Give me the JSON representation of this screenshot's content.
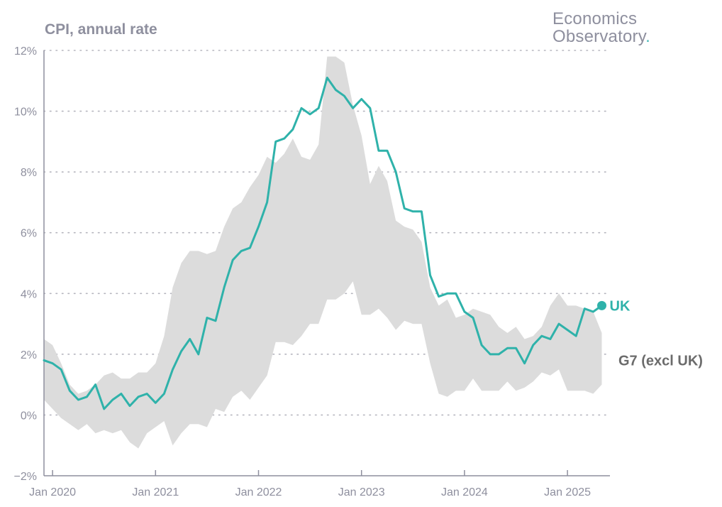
{
  "chart_data": {
    "type": "line",
    "title": "CPI, annual rate",
    "brand": {
      "line1": "Economics",
      "line2": "Observatory",
      "dot": "."
    },
    "x_start": "2019-12",
    "x_end": "2025-05",
    "x_tick_labels": [
      "Jan 2020",
      "Jan 2021",
      "Jan 2022",
      "Jan 2023",
      "Jan 2024",
      "Jan 2025"
    ],
    "x_tick_positions": [
      1,
      13,
      25,
      37,
      49,
      61
    ],
    "ylim": [
      -2,
      12
    ],
    "y_ticks": [
      -2,
      0,
      2,
      4,
      6,
      8,
      10,
      12
    ],
    "y_tick_labels": [
      "−2%",
      "0%",
      "2%",
      "4%",
      "6%",
      "8%",
      "10%",
      "12%"
    ],
    "gridlines": "horizontal dotted",
    "series": [
      {
        "name": "UK",
        "kind": "line",
        "color": "#2fb2aa",
        "values": [
          1.8,
          1.7,
          1.5,
          0.8,
          0.5,
          0.6,
          1.0,
          0.2,
          0.5,
          0.7,
          0.3,
          0.6,
          0.7,
          0.4,
          0.7,
          1.5,
          2.1,
          2.5,
          2.0,
          3.2,
          3.1,
          4.2,
          5.1,
          5.4,
          5.5,
          6.2,
          7.0,
          9.0,
          9.1,
          9.4,
          10.1,
          9.9,
          10.1,
          11.1,
          10.7,
          10.5,
          10.1,
          10.4,
          10.1,
          8.7,
          8.7,
          8.0,
          6.8,
          6.7,
          6.7,
          4.6,
          3.9,
          4.0,
          4.0,
          3.4,
          3.2,
          2.3,
          2.0,
          2.0,
          2.2,
          2.2,
          1.7,
          2.3,
          2.6,
          2.5,
          3.0,
          2.8,
          2.6,
          3.5,
          3.4,
          3.6
        ]
      },
      {
        "name": "G7 (excl UK)",
        "kind": "range",
        "color": "#dcdcdc",
        "upper": [
          2.5,
          2.3,
          1.7,
          1.0,
          0.7,
          0.8,
          1.0,
          1.3,
          1.4,
          1.2,
          1.2,
          1.4,
          1.4,
          1.7,
          2.6,
          4.2,
          5.0,
          5.4,
          5.4,
          5.3,
          5.4,
          6.2,
          6.8,
          7.0,
          7.5,
          7.9,
          8.5,
          8.3,
          8.6,
          9.1,
          8.5,
          8.4,
          8.9,
          11.8,
          11.8,
          11.6,
          10.2,
          9.2,
          7.6,
          8.2,
          7.7,
          6.4,
          6.2,
          6.1,
          5.7,
          4.2,
          3.6,
          3.8,
          3.2,
          3.3,
          3.5,
          3.4,
          3.3,
          2.9,
          2.7,
          2.9,
          2.5,
          2.6,
          2.9,
          3.6,
          4.0,
          3.6,
          3.6,
          3.5,
          3.4,
          2.7
        ],
        "lower": [
          0.5,
          0.2,
          -0.1,
          -0.3,
          -0.5,
          -0.3,
          -0.6,
          -0.5,
          -0.6,
          -0.5,
          -0.9,
          -1.1,
          -0.6,
          -0.4,
          -0.2,
          -1.0,
          -0.6,
          -0.3,
          -0.3,
          -0.4,
          0.2,
          0.1,
          0.6,
          0.8,
          0.5,
          0.9,
          1.3,
          2.4,
          2.4,
          2.3,
          2.6,
          3.0,
          3.0,
          3.8,
          3.8,
          4.0,
          4.4,
          3.3,
          3.3,
          3.5,
          3.2,
          2.8,
          3.1,
          3.0,
          3.0,
          1.7,
          0.7,
          0.6,
          0.8,
          0.8,
          1.2,
          0.8,
          0.8,
          0.8,
          1.1,
          0.8,
          0.9,
          1.1,
          1.4,
          1.3,
          1.5,
          0.8,
          0.8,
          0.8,
          0.7,
          1.0
        ]
      }
    ],
    "legend": {
      "position": "right",
      "labels": [
        "UK",
        "G7 (excl UK)"
      ]
    }
  }
}
